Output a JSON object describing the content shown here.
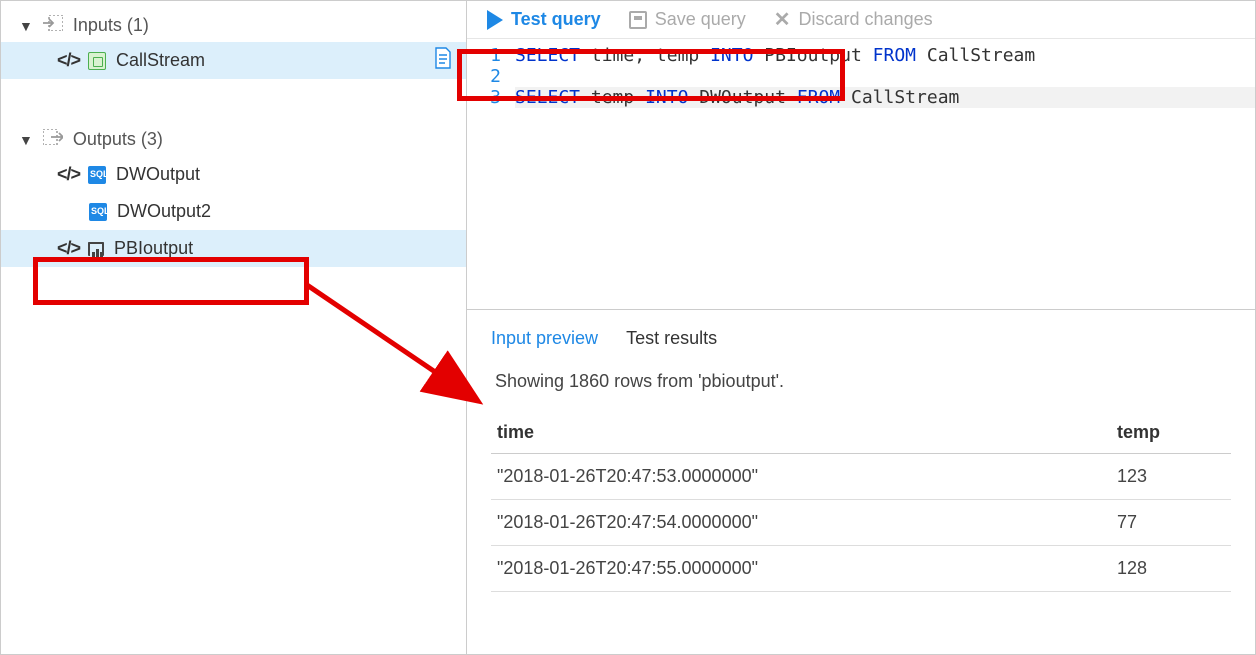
{
  "colors": {
    "accent": "#1e88e5",
    "annotation": "#e30000",
    "keyword": "#0033cc",
    "selected_bg": "#dceffb",
    "border": "#cccccc",
    "muted": "#aaaaaa"
  },
  "sidebar": {
    "inputs": {
      "header": "Inputs (1)"
    },
    "outputs": {
      "header": "Outputs (3)"
    },
    "items": {
      "callstream": "CallStream",
      "dwoutput": "DWOutput",
      "dwoutput2": "DWOutput2",
      "pbioutput": "PBIoutput"
    }
  },
  "toolbar": {
    "test": "Test query",
    "save": "Save query",
    "discard": "Discard changes"
  },
  "editor": {
    "lines": {
      "l1": "1",
      "l2": "2",
      "l3": "3"
    },
    "tokens": {
      "select": "SELECT",
      "into": "INTO",
      "from": "FROM",
      "time_comma": " time, temp ",
      "pbi": " PBIoutput ",
      "callstream": " CallStream",
      "temp": " temp ",
      "dwoutput": " DWOutput "
    }
  },
  "results": {
    "tabs": {
      "preview": "Input preview",
      "test": "Test results"
    },
    "status": "Showing 1860 rows from 'pbioutput'.",
    "columns": {
      "time": "time",
      "temp": "temp"
    },
    "rows": [
      {
        "time": "\"2018-01-26T20:47:53.0000000\"",
        "temp": "123"
      },
      {
        "time": "\"2018-01-26T20:47:54.0000000\"",
        "temp": "77"
      },
      {
        "time": "\"2018-01-26T20:47:55.0000000\"",
        "temp": "128"
      }
    ]
  }
}
